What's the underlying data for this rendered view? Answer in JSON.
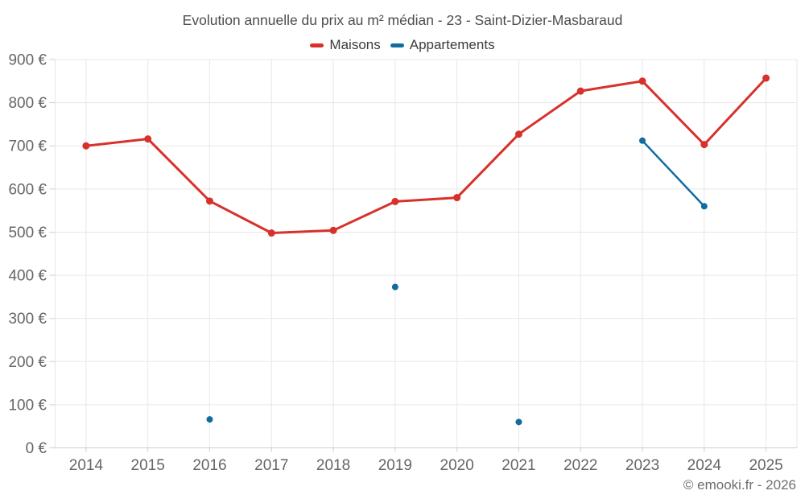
{
  "header": {
    "title": "Evolution annuelle du prix au m² médian - 23 - Saint-Dizier-Masbaraud"
  },
  "footer": {
    "credit": "© emooki.fr - 2026"
  },
  "chart_data": {
    "type": "line",
    "x": [
      2014,
      2015,
      2016,
      2017,
      2018,
      2019,
      2020,
      2021,
      2022,
      2023,
      2024,
      2025
    ],
    "series": [
      {
        "name": "Maisons",
        "color": "#d7312c",
        "values": [
          700,
          716,
          572,
          498,
          504,
          571,
          580,
          727,
          827,
          850,
          703,
          857
        ]
      },
      {
        "name": "Appartements",
        "color": "#116c9f",
        "values": [
          null,
          null,
          66,
          null,
          null,
          373,
          null,
          60,
          null,
          712,
          560,
          null
        ]
      }
    ],
    "title": "Evolution annuelle du prix au m² médian - 23 - Saint-Dizier-Masbaraud",
    "xlabel": "",
    "ylabel": "",
    "ytick_format": "{value} €",
    "ylim": [
      0,
      900
    ],
    "ytick_step": 100,
    "grid": true,
    "legend_position": "top-center"
  }
}
